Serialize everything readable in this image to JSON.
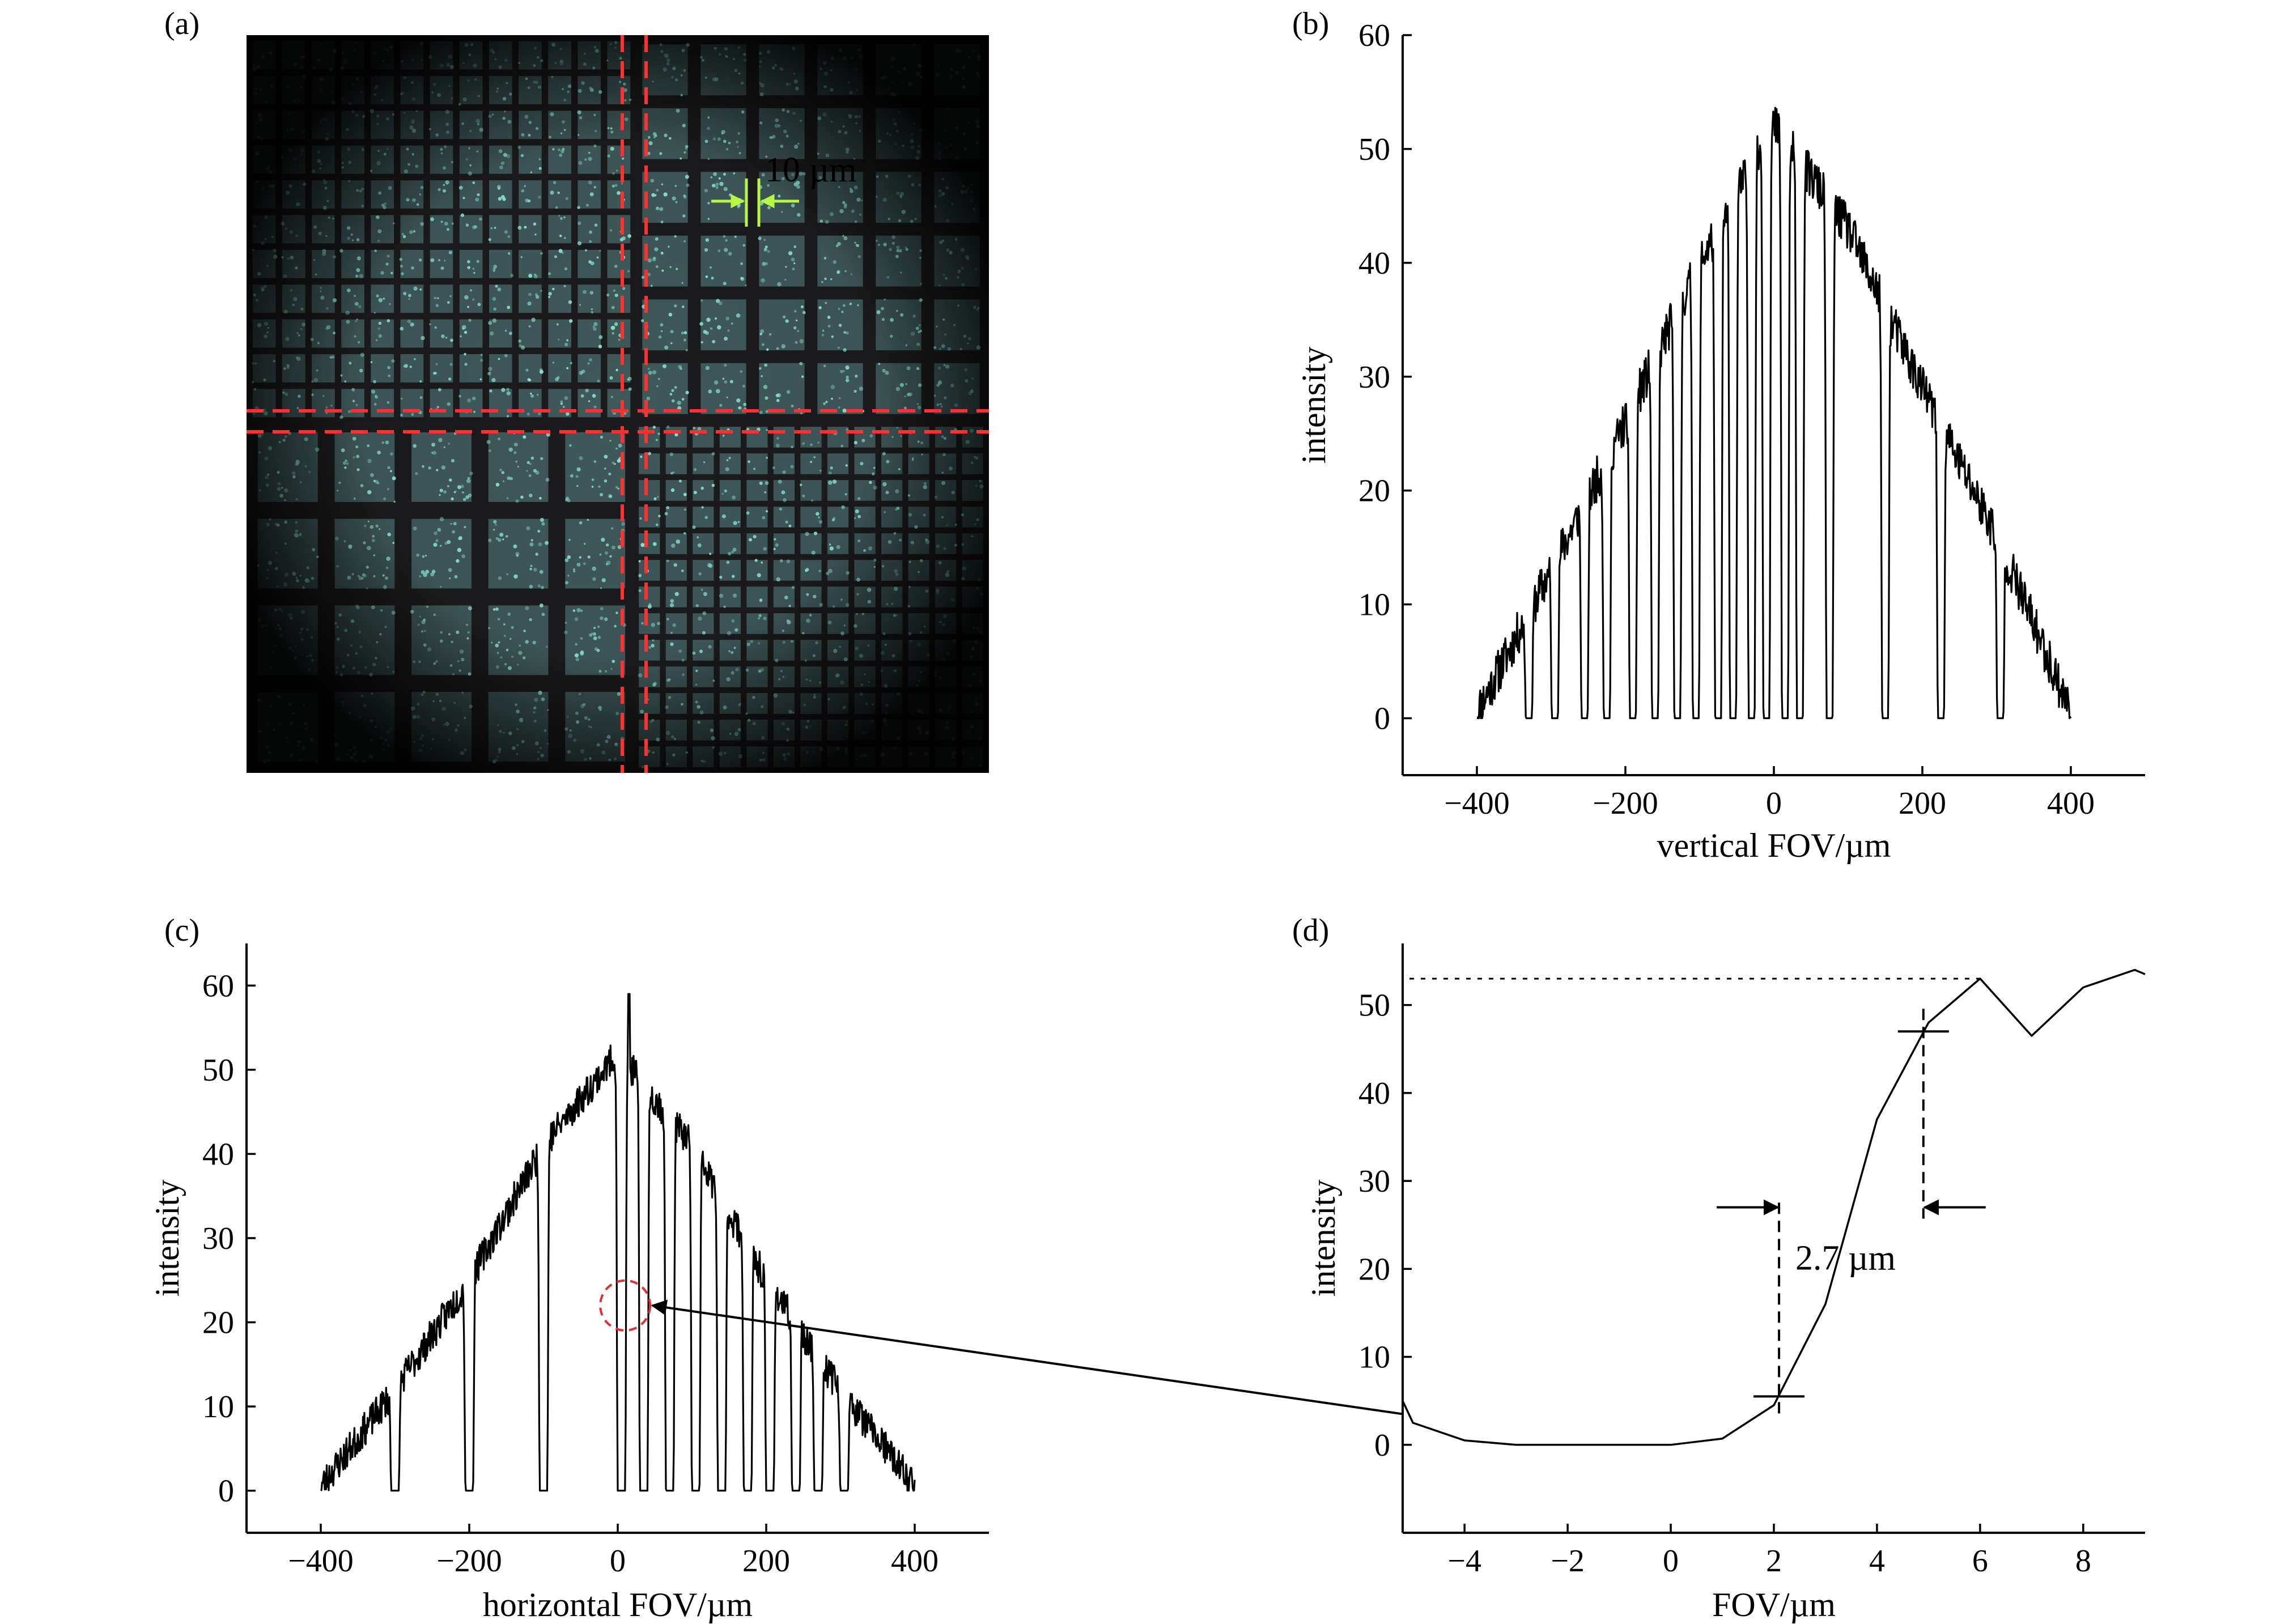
{
  "panels": {
    "a": {
      "label": "(a)",
      "scale_bar_text": "10 µm",
      "accent_color": "#b8f545",
      "line_color": "#ff3030",
      "background_color": "#1b1b1d",
      "fill_color": "#5c8a8a",
      "speckle_color": "#8ff0dc"
    },
    "b": {
      "label": "(b)"
    },
    "c": {
      "label": "(c)"
    },
    "d": {
      "label": "(d)",
      "annotation": "2.7 µm"
    }
  },
  "chart_data": [
    {
      "id": "b",
      "type": "line",
      "xlabel": "vertical FOV/µm",
      "ylabel": "intensity",
      "xlim": [
        -500,
        500
      ],
      "ylim": [
        -5,
        60
      ],
      "xticks": [
        -400,
        -200,
        0,
        200,
        400
      ],
      "xtick_labels": [
        "−400",
        "−200",
        "0",
        "200",
        "400"
      ],
      "yticks": [
        0,
        10,
        20,
        30,
        40,
        50,
        60
      ],
      "ytick_labels": [
        "0",
        "10",
        "20",
        "30",
        "40",
        "50",
        "60"
      ],
      "envelope": {
        "x": [
          -400,
          -300,
          -200,
          -100,
          0,
          100,
          200,
          300,
          400
        ],
        "y": [
          0.5,
          13,
          26,
          40,
          52,
          43,
          29,
          16,
          0.5
        ]
      },
      "gap_centers": [
        -330,
        -295,
        -255,
        -225,
        -190,
        -160,
        -130,
        -105,
        -75,
        -55,
        -30,
        -10,
        15,
        35,
        75,
        150,
        225,
        305
      ],
      "gap_half_width": 4,
      "gap_value": 0,
      "noise_amplitude": 2,
      "line_color": "#000000"
    },
    {
      "id": "c",
      "type": "line",
      "xlabel": "horizontal FOV/µm",
      "ylabel": "intensity",
      "xlim": [
        -500,
        500
      ],
      "ylim": [
        -5,
        65
      ],
      "xticks": [
        -400,
        -200,
        0,
        200,
        400
      ],
      "xtick_labels": [
        "−400",
        "−200",
        "0",
        "200",
        "400"
      ],
      "yticks": [
        0,
        10,
        20,
        30,
        40,
        50,
        60
      ],
      "ytick_labels": [
        "0",
        "10",
        "20",
        "30",
        "40",
        "50",
        "60"
      ],
      "envelope": {
        "x": [
          -400,
          -300,
          -200,
          -100,
          0,
          100,
          200,
          300,
          400
        ],
        "y": [
          0.5,
          12,
          25,
          41,
          52,
          41,
          25,
          12,
          0.5
        ]
      },
      "gap_centers": [
        -300,
        -200,
        -100,
        5,
        35,
        70,
        105,
        140,
        175,
        205,
        240,
        270,
        305
      ],
      "gap_half_width": 5,
      "gap_value": 0,
      "noise_amplitude": 2,
      "peak": {
        "x": 15,
        "y": 59
      },
      "highlight_circle": {
        "x": 10,
        "y": 22,
        "color": "#e03030"
      },
      "line_color": "#000000"
    },
    {
      "id": "d",
      "type": "line",
      "xlabel": "FOV/µm",
      "ylabel": "intensity",
      "xlim": [
        -5.2,
        9.2
      ],
      "ylim": [
        -10,
        57
      ],
      "xticks": [
        -4,
        -2,
        0,
        2,
        4,
        6,
        8
      ],
      "xtick_labels": [
        "−4",
        "−2",
        "0",
        "2",
        "4",
        "6",
        "8"
      ],
      "yticks": [
        0,
        10,
        20,
        30,
        40,
        50
      ],
      "ytick_labels": [
        "0",
        "10",
        "20",
        "30",
        "40",
        "50"
      ],
      "x": [
        -5.2,
        -5,
        -4,
        -3,
        -2,
        -1,
        0,
        1,
        2,
        3,
        4,
        5,
        6,
        7,
        8,
        9,
        9.2
      ],
      "y": [
        5,
        2.5,
        0.5,
        0,
        0,
        0,
        0,
        0.7,
        4.5,
        16,
        37,
        48,
        53,
        46.5,
        52,
        54,
        53.5
      ],
      "reference_level": 53,
      "markers": [
        {
          "x": 2.1,
          "y": 5.5
        },
        {
          "x": 4.9,
          "y": 47
        }
      ],
      "line_color": "#000000"
    }
  ]
}
